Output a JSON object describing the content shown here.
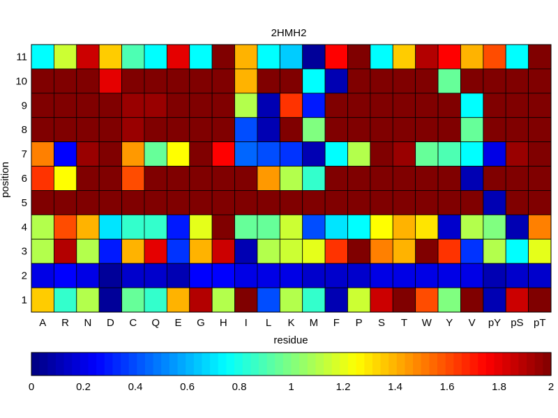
{
  "chart_data": {
    "type": "heatmap",
    "title": "2HMH2",
    "xlabel": "residue",
    "ylabel": "position",
    "x_categories": [
      "A",
      "R",
      "N",
      "D",
      "C",
      "Q",
      "E",
      "G",
      "H",
      "I",
      "L",
      "K",
      "M",
      "F",
      "P",
      "S",
      "T",
      "W",
      "Y",
      "V",
      "pY",
      "pS",
      "pT"
    ],
    "y_categories": [
      "11",
      "10",
      "9",
      "8",
      "7",
      "6",
      "5",
      "4",
      "3",
      "2",
      "1"
    ],
    "color_range": [
      0,
      2
    ],
    "colormap": "jet",
    "colorbar_ticks": [
      "0",
      "0.2",
      "0.4",
      "0.6",
      "0.8",
      "1",
      "1.2",
      "1.4",
      "1.6",
      "1.8",
      "2"
    ],
    "values": [
      [
        0.75,
        1.15,
        1.85,
        1.35,
        0.9,
        0.75,
        1.8,
        0.75,
        2.0,
        1.4,
        0.75,
        0.65,
        0.05,
        1.75,
        2.0,
        0.75,
        1.35,
        1.9,
        1.75,
        1.4,
        1.6,
        0.75,
        2.0
      ],
      [
        2.0,
        2.0,
        2.0,
        1.8,
        2.0,
        2.0,
        2.0,
        2.0,
        2.0,
        1.4,
        2.0,
        2.0,
        0.75,
        0.1,
        2.0,
        2.0,
        2.0,
        2.0,
        0.95,
        2.0,
        2.0,
        2.0,
        2.0
      ],
      [
        2.0,
        2.0,
        2.0,
        2.0,
        1.95,
        1.95,
        2.0,
        2.0,
        2.0,
        1.1,
        0.1,
        1.65,
        0.3,
        2.0,
        2.0,
        2.0,
        2.0,
        2.0,
        2.0,
        0.75,
        2.0,
        2.0,
        2.0
      ],
      [
        2.0,
        2.0,
        2.0,
        2.0,
        1.95,
        2.0,
        2.0,
        2.0,
        2.0,
        0.4,
        0.1,
        2.0,
        1.0,
        2.0,
        2.0,
        2.0,
        2.0,
        2.0,
        2.0,
        0.95,
        2.0,
        2.0,
        2.0
      ],
      [
        1.5,
        0.25,
        1.95,
        2.0,
        1.45,
        0.95,
        1.25,
        2.0,
        1.75,
        0.45,
        0.4,
        0.35,
        0.1,
        0.75,
        1.1,
        2.0,
        1.95,
        0.95,
        0.9,
        0.75,
        0.2,
        1.95,
        2.0
      ],
      [
        1.65,
        1.25,
        2.0,
        2.0,
        1.6,
        2.0,
        2.0,
        2.0,
        2.0,
        2.0,
        1.45,
        1.1,
        0.85,
        2.0,
        2.0,
        2.0,
        2.0,
        2.0,
        2.0,
        0.1,
        2.0,
        2.0,
        2.0
      ],
      [
        2.0,
        2.0,
        2.0,
        2.0,
        2.0,
        2.0,
        2.0,
        2.0,
        2.0,
        2.0,
        2.0,
        2.0,
        2.0,
        2.0,
        2.0,
        2.0,
        2.0,
        2.0,
        2.0,
        2.0,
        0.1,
        2.0,
        2.0
      ],
      [
        1.1,
        1.6,
        1.4,
        0.7,
        0.85,
        0.85,
        0.3,
        1.2,
        2.0,
        0.95,
        0.95,
        1.15,
        0.4,
        0.7,
        0.75,
        1.25,
        1.4,
        1.3,
        0.15,
        1.1,
        1.0,
        0.1,
        1.5
      ],
      [
        1.1,
        1.9,
        1.1,
        0.3,
        1.4,
        1.8,
        0.35,
        1.4,
        1.85,
        0.1,
        1.1,
        1.15,
        1.2,
        1.65,
        2.0,
        1.5,
        1.4,
        2.0,
        1.65,
        0.35,
        1.1,
        0.75,
        1.2
      ],
      [
        0.2,
        0.25,
        0.2,
        0.05,
        0.15,
        0.15,
        0.1,
        0.25,
        0.25,
        0.2,
        0.2,
        0.2,
        0.15,
        0.15,
        0.15,
        0.2,
        0.2,
        0.2,
        0.2,
        0.2,
        0.1,
        0.15,
        0.15
      ],
      [
        1.35,
        0.85,
        1.1,
        0.05,
        0.95,
        0.85,
        1.4,
        1.9,
        1.1,
        2.0,
        0.4,
        1.1,
        0.85,
        0.1,
        1.15,
        1.85,
        2.0,
        1.6,
        1.0,
        2.0,
        0.1,
        1.85,
        2.0
      ]
    ]
  }
}
